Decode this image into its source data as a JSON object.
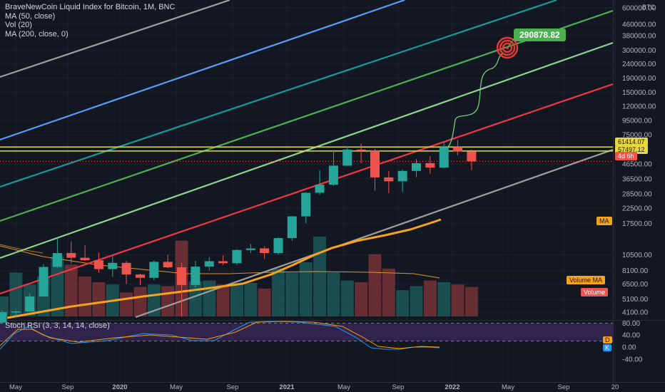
{
  "legend": {
    "title": "BraveNewCoin Liquid Index for Bitcoin, 1M, BNC",
    "items": [
      "MA (50, close)",
      "Vol (20)",
      "MA (200, close, 0)"
    ]
  },
  "currency": "BTC",
  "price_axis_labels": [
    "600000.00",
    "460000.00",
    "380000.00",
    "300000.00",
    "240000.00",
    "190000.00",
    "150000.00",
    "120000.00",
    "95000.00",
    "75000.00",
    "46500.00",
    "36500.00",
    "28500.00",
    "22500.00",
    "17500.00",
    "10500.00",
    "8100.00",
    "6500.00",
    "5100.00",
    "4100.00"
  ],
  "time_axis_labels": [
    "May",
    "Sep",
    "2020",
    "May",
    "Sep",
    "2021",
    "May",
    "Sep",
    "2022",
    "May",
    "Sep",
    "20"
  ],
  "rsi": {
    "label": "Stoch RSI (3, 3, 14, 14, close)",
    "axis_labels": [
      "80.00",
      "40.00",
      "0.00",
      "-40.00"
    ],
    "d_badge": "D",
    "k_badge": "K"
  },
  "badges": {
    "target": "290878.82",
    "level1": "61414.07",
    "level2": "57497.12",
    "countdown": "4d 6h",
    "ma": "MA",
    "volume_ma": "Volume MA",
    "volume": "Volume"
  },
  "colors": {
    "up": "#26a69a",
    "down": "#ef5350",
    "ma50": "#f7a21b",
    "level": "#e6d83a",
    "projection": "#4caf50"
  },
  "chart_data": {
    "type": "candlestick",
    "title": "BraveNewCoin Liquid Index for Bitcoin, 1M, BNC",
    "y_scale": "log",
    "months": [
      "2019-02",
      "2019-03",
      "2019-04",
      "2019-05",
      "2019-06",
      "2019-07",
      "2019-08",
      "2019-09",
      "2019-10",
      "2019-11",
      "2019-12",
      "2020-01",
      "2020-02",
      "2020-03",
      "2020-04",
      "2020-05",
      "2020-06",
      "2020-07",
      "2020-08",
      "2020-09",
      "2020-10",
      "2020-11",
      "2020-12",
      "2021-01",
      "2021-02",
      "2021-03",
      "2021-04",
      "2021-05",
      "2021-06",
      "2021-07",
      "2021-08",
      "2021-09",
      "2021-10",
      "2021-11",
      "2021-12"
    ],
    "ohlc": [
      [
        3450,
        4200,
        3400,
        4100
      ],
      [
        4100,
        4200,
        3800,
        4150
      ],
      [
        4150,
        5600,
        4100,
        5300
      ],
      [
        5300,
        9000,
        5300,
        8600
      ],
      [
        8600,
        13700,
        8500,
        10800
      ],
      [
        10800,
        13100,
        9100,
        10000
      ],
      [
        10000,
        12300,
        9500,
        9600
      ],
      [
        9600,
        10900,
        7800,
        8300
      ],
      [
        8300,
        10400,
        7300,
        9200
      ],
      [
        9200,
        9500,
        6500,
        7600
      ],
      [
        7600,
        7700,
        6400,
        7200
      ],
      [
        7200,
        9600,
        6900,
        9350
      ],
      [
        9350,
        10500,
        8400,
        8550
      ],
      [
        8550,
        9200,
        3800,
        6400
      ],
      [
        6400,
        9500,
        6100,
        8650
      ],
      [
        8650,
        10100,
        8100,
        9450
      ],
      [
        9450,
        10400,
        8900,
        9150
      ],
      [
        9150,
        11500,
        8900,
        11350
      ],
      [
        11350,
        12500,
        10800,
        11650
      ],
      [
        11650,
        12100,
        9800,
        10800
      ],
      [
        10800,
        14000,
        10500,
        13800
      ],
      [
        13800,
        19800,
        13200,
        19700
      ],
      [
        19700,
        29300,
        17600,
        29000
      ],
      [
        29000,
        42000,
        28000,
        33100
      ],
      [
        33100,
        58400,
        32400,
        45200
      ],
      [
        45200,
        61800,
        45000,
        58800
      ],
      [
        58800,
        64900,
        47000,
        57700
      ],
      [
        57700,
        59500,
        30000,
        37300
      ],
      [
        37300,
        41300,
        28800,
        35000
      ],
      [
        35000,
        42300,
        29300,
        41500
      ],
      [
        41500,
        50500,
        37400,
        47100
      ],
      [
        47100,
        52900,
        39600,
        43800
      ],
      [
        43800,
        67000,
        43300,
        61300
      ],
      [
        61300,
        69000,
        53500,
        57000
      ],
      [
        57000,
        59000,
        42000,
        48500
      ]
    ],
    "volume_relative": [
      0.25,
      0.55,
      0.4,
      0.5,
      0.75,
      0.65,
      0.5,
      0.43,
      0.4,
      0.3,
      0.37,
      0.4,
      0.38,
      0.95,
      0.44,
      0.45,
      0.4,
      0.4,
      0.42,
      0.35,
      0.6,
      0.55,
      0.68,
      1.0,
      0.55,
      0.45,
      0.43,
      0.78,
      0.6,
      0.33,
      0.38,
      0.45,
      0.43,
      0.4,
      0.37
    ],
    "price_levels": [
      61414.07,
      57497.12
    ],
    "projection_target": 290878.82,
    "price_axis_ticks": [
      600000,
      460000,
      380000,
      300000,
      240000,
      190000,
      150000,
      120000,
      95000,
      75000,
      46500,
      36500,
      28500,
      22500,
      17500,
      10500,
      8100,
      6500,
      5100,
      4100
    ],
    "stoch_rsi_axis": [
      80,
      40,
      0,
      -40
    ]
  }
}
